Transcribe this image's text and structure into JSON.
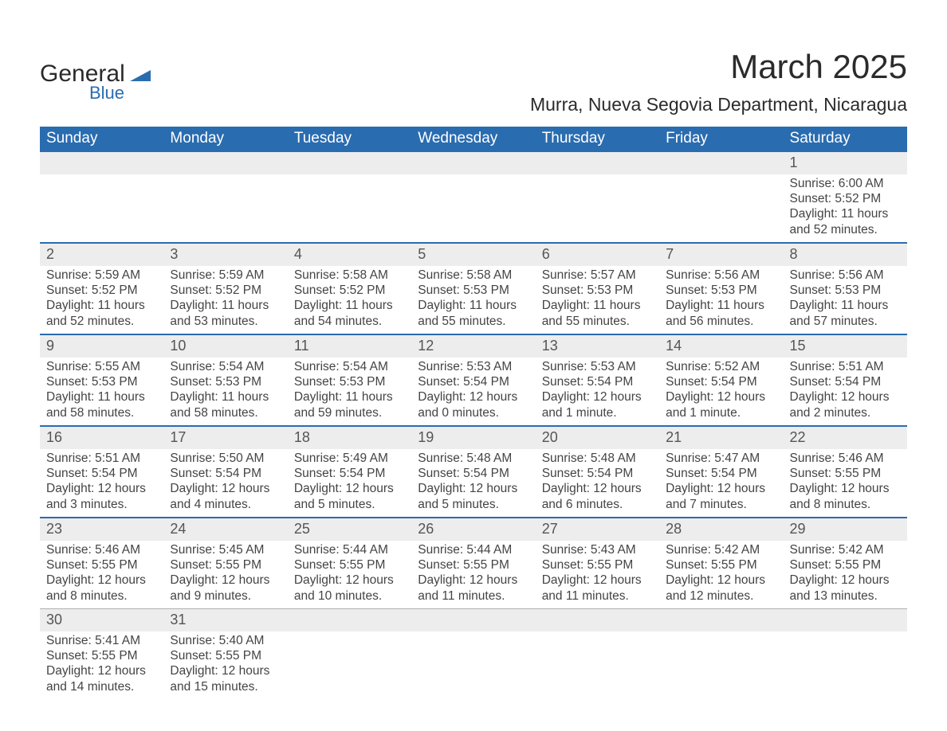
{
  "logo": {
    "general": "General",
    "blue": "Blue",
    "mark_color": "#2a6cb0"
  },
  "title": "March 2025",
  "location": "Murra, Nueva Segovia Department, Nicaragua",
  "header_bg": "#2a6cb0",
  "header_fg": "#ffffff",
  "daynum_bg": "#ededed",
  "divider_color": "#2a6cb0",
  "text_color": "#444444",
  "font_family": "Arial",
  "day_headers": [
    "Sunday",
    "Monday",
    "Tuesday",
    "Wednesday",
    "Thursday",
    "Friday",
    "Saturday"
  ],
  "weeks": [
    {
      "first": true,
      "days": [
        null,
        null,
        null,
        null,
        null,
        null,
        {
          "n": "1",
          "sunrise": "Sunrise: 6:00 AM",
          "sunset": "Sunset: 5:52 PM",
          "day1": "Daylight: 11 hours",
          "day2": "and 52 minutes."
        }
      ]
    },
    {
      "days": [
        {
          "n": "2",
          "sunrise": "Sunrise: 5:59 AM",
          "sunset": "Sunset: 5:52 PM",
          "day1": "Daylight: 11 hours",
          "day2": "and 52 minutes."
        },
        {
          "n": "3",
          "sunrise": "Sunrise: 5:59 AM",
          "sunset": "Sunset: 5:52 PM",
          "day1": "Daylight: 11 hours",
          "day2": "and 53 minutes."
        },
        {
          "n": "4",
          "sunrise": "Sunrise: 5:58 AM",
          "sunset": "Sunset: 5:52 PM",
          "day1": "Daylight: 11 hours",
          "day2": "and 54 minutes."
        },
        {
          "n": "5",
          "sunrise": "Sunrise: 5:58 AM",
          "sunset": "Sunset: 5:53 PM",
          "day1": "Daylight: 11 hours",
          "day2": "and 55 minutes."
        },
        {
          "n": "6",
          "sunrise": "Sunrise: 5:57 AM",
          "sunset": "Sunset: 5:53 PM",
          "day1": "Daylight: 11 hours",
          "day2": "and 55 minutes."
        },
        {
          "n": "7",
          "sunrise": "Sunrise: 5:56 AM",
          "sunset": "Sunset: 5:53 PM",
          "day1": "Daylight: 11 hours",
          "day2": "and 56 minutes."
        },
        {
          "n": "8",
          "sunrise": "Sunrise: 5:56 AM",
          "sunset": "Sunset: 5:53 PM",
          "day1": "Daylight: 11 hours",
          "day2": "and 57 minutes."
        }
      ]
    },
    {
      "days": [
        {
          "n": "9",
          "sunrise": "Sunrise: 5:55 AM",
          "sunset": "Sunset: 5:53 PM",
          "day1": "Daylight: 11 hours",
          "day2": "and 58 minutes."
        },
        {
          "n": "10",
          "sunrise": "Sunrise: 5:54 AM",
          "sunset": "Sunset: 5:53 PM",
          "day1": "Daylight: 11 hours",
          "day2": "and 58 minutes."
        },
        {
          "n": "11",
          "sunrise": "Sunrise: 5:54 AM",
          "sunset": "Sunset: 5:53 PM",
          "day1": "Daylight: 11 hours",
          "day2": "and 59 minutes."
        },
        {
          "n": "12",
          "sunrise": "Sunrise: 5:53 AM",
          "sunset": "Sunset: 5:54 PM",
          "day1": "Daylight: 12 hours",
          "day2": "and 0 minutes."
        },
        {
          "n": "13",
          "sunrise": "Sunrise: 5:53 AM",
          "sunset": "Sunset: 5:54 PM",
          "day1": "Daylight: 12 hours",
          "day2": "and 1 minute."
        },
        {
          "n": "14",
          "sunrise": "Sunrise: 5:52 AM",
          "sunset": "Sunset: 5:54 PM",
          "day1": "Daylight: 12 hours",
          "day2": "and 1 minute."
        },
        {
          "n": "15",
          "sunrise": "Sunrise: 5:51 AM",
          "sunset": "Sunset: 5:54 PM",
          "day1": "Daylight: 12 hours",
          "day2": "and 2 minutes."
        }
      ]
    },
    {
      "days": [
        {
          "n": "16",
          "sunrise": "Sunrise: 5:51 AM",
          "sunset": "Sunset: 5:54 PM",
          "day1": "Daylight: 12 hours",
          "day2": "and 3 minutes."
        },
        {
          "n": "17",
          "sunrise": "Sunrise: 5:50 AM",
          "sunset": "Sunset: 5:54 PM",
          "day1": "Daylight: 12 hours",
          "day2": "and 4 minutes."
        },
        {
          "n": "18",
          "sunrise": "Sunrise: 5:49 AM",
          "sunset": "Sunset: 5:54 PM",
          "day1": "Daylight: 12 hours",
          "day2": "and 5 minutes."
        },
        {
          "n": "19",
          "sunrise": "Sunrise: 5:48 AM",
          "sunset": "Sunset: 5:54 PM",
          "day1": "Daylight: 12 hours",
          "day2": "and 5 minutes."
        },
        {
          "n": "20",
          "sunrise": "Sunrise: 5:48 AM",
          "sunset": "Sunset: 5:54 PM",
          "day1": "Daylight: 12 hours",
          "day2": "and 6 minutes."
        },
        {
          "n": "21",
          "sunrise": "Sunrise: 5:47 AM",
          "sunset": "Sunset: 5:54 PM",
          "day1": "Daylight: 12 hours",
          "day2": "and 7 minutes."
        },
        {
          "n": "22",
          "sunrise": "Sunrise: 5:46 AM",
          "sunset": "Sunset: 5:55 PM",
          "day1": "Daylight: 12 hours",
          "day2": "and 8 minutes."
        }
      ]
    },
    {
      "days": [
        {
          "n": "23",
          "sunrise": "Sunrise: 5:46 AM",
          "sunset": "Sunset: 5:55 PM",
          "day1": "Daylight: 12 hours",
          "day2": "and 8 minutes."
        },
        {
          "n": "24",
          "sunrise": "Sunrise: 5:45 AM",
          "sunset": "Sunset: 5:55 PM",
          "day1": "Daylight: 12 hours",
          "day2": "and 9 minutes."
        },
        {
          "n": "25",
          "sunrise": "Sunrise: 5:44 AM",
          "sunset": "Sunset: 5:55 PM",
          "day1": "Daylight: 12 hours",
          "day2": "and 10 minutes."
        },
        {
          "n": "26",
          "sunrise": "Sunrise: 5:44 AM",
          "sunset": "Sunset: 5:55 PM",
          "day1": "Daylight: 12 hours",
          "day2": "and 11 minutes."
        },
        {
          "n": "27",
          "sunrise": "Sunrise: 5:43 AM",
          "sunset": "Sunset: 5:55 PM",
          "day1": "Daylight: 12 hours",
          "day2": "and 11 minutes."
        },
        {
          "n": "28",
          "sunrise": "Sunrise: 5:42 AM",
          "sunset": "Sunset: 5:55 PM",
          "day1": "Daylight: 12 hours",
          "day2": "and 12 minutes."
        },
        {
          "n": "29",
          "sunrise": "Sunrise: 5:42 AM",
          "sunset": "Sunset: 5:55 PM",
          "day1": "Daylight: 12 hours",
          "day2": "and 13 minutes."
        }
      ]
    },
    {
      "last": true,
      "days": [
        {
          "n": "30",
          "sunrise": "Sunrise: 5:41 AM",
          "sunset": "Sunset: 5:55 PM",
          "day1": "Daylight: 12 hours",
          "day2": "and 14 minutes."
        },
        {
          "n": "31",
          "sunrise": "Sunrise: 5:40 AM",
          "sunset": "Sunset: 5:55 PM",
          "day1": "Daylight: 12 hours",
          "day2": "and 15 minutes."
        },
        null,
        null,
        null,
        null,
        null
      ]
    }
  ]
}
